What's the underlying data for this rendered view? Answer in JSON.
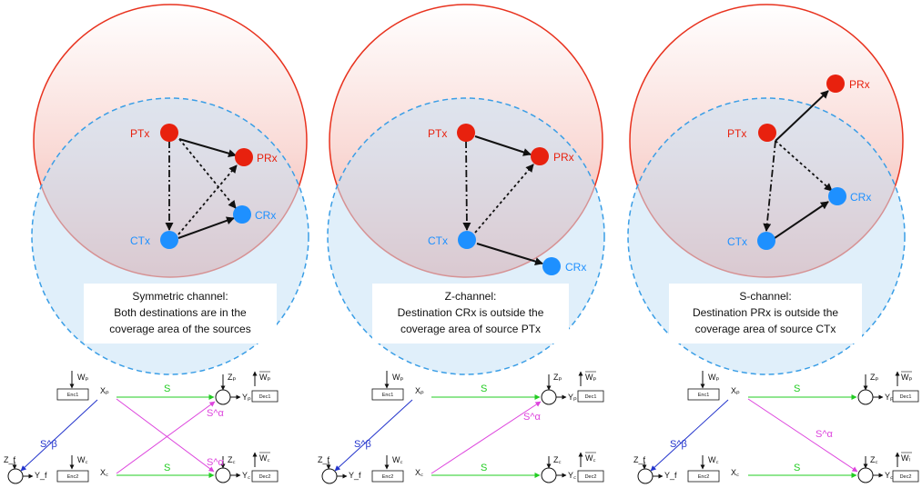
{
  "colors": {
    "primary_circle": "#e8321e",
    "primary_fill_top": "#ffffff",
    "primary_fill_bottom": "#f4b7b0",
    "secondary_circle": "#3a9ee6",
    "secondary_fill": "#c7e2f6",
    "primary_node": "#e8210e",
    "secondary_node": "#1e90ff",
    "primary_label": "#e8210e",
    "secondary_label": "#1e90ff",
    "green_link": "#22cc22",
    "magenta_link": "#dd44dd",
    "blue_link": "#2233cc"
  },
  "panels": [
    {
      "nodes": {
        "ptx": "PTx",
        "prx": "PRx",
        "ctx": "CTx",
        "crx": "CRx"
      },
      "caption": [
        "Symmetric channel:",
        "Both destinations are in the",
        "coverage area of the sources"
      ],
      "model": {
        "wp": "Wₚ",
        "enc1": "Enc1",
        "xp": "Xₚ",
        "zp": "Zₚ",
        "yp": "Yₚ",
        "wp_hat": "Wₚ",
        "dec1": "Dec1",
        "zf": "Z_f",
        "yf": "Y_f",
        "wc": "W꜀",
        "enc2": "Enc2",
        "xc": "X꜀",
        "zc": "Z꜀",
        "yc": "Y꜀",
        "wc_hat": "W꜀",
        "dec2": "Dec2",
        "s_top": "S",
        "s_bottom": "S",
        "s_cross_top": "S^α",
        "s_cross_bottom": "S^α",
        "s_beta": "S^β"
      }
    },
    {
      "nodes": {
        "ptx": "PTx",
        "prx": "PRx",
        "ctx": "CTx",
        "crx": "CRx"
      },
      "caption": [
        "Z-channel:",
        "Destination CRx is outside the",
        "coverage area of source PTx"
      ],
      "model": {
        "wp": "Wₚ",
        "enc1": "Enc1",
        "xp": "Xₚ",
        "zp": "Zₚ",
        "yp": "Yₚ",
        "wp_hat": "Wₚ",
        "dec1": "Dec1",
        "zf": "Z_f",
        "yf": "Y_f",
        "wc": "W꜀",
        "enc2": "Enc2",
        "xc": "X꜀",
        "zc": "Z꜀",
        "yc": "Y꜀",
        "wc_hat": "W꜀",
        "dec2": "Dec2",
        "s_top": "S",
        "s_bottom": "S",
        "s_cross": "S^α",
        "s_beta": "S^β"
      }
    },
    {
      "nodes": {
        "ptx": "PTx",
        "prx": "PRx",
        "ctx": "CTx",
        "crx": "CRx"
      },
      "caption": [
        "S-channel:",
        "Destination PRx is outside the",
        "coverage area of source CTx"
      ],
      "model": {
        "wp": "Wₚ",
        "enc1": "Enc1",
        "xp": "Xₚ",
        "zp": "Zₚ",
        "yp": "Yₚ",
        "wp_hat": "Wₚ",
        "dec1": "Dec1",
        "zf": "Z_f",
        "yf": "Y_f",
        "wc": "W꜀",
        "enc2": "Enc2",
        "xc": "X꜀",
        "zc": "Z꜀",
        "yc": "Y꜀",
        "wc_hat": "Wᵢ",
        "dec2": "Dec2",
        "s_top": "S",
        "s_bottom": "S",
        "s_cross": "S^α",
        "s_beta": "S^β"
      }
    }
  ]
}
